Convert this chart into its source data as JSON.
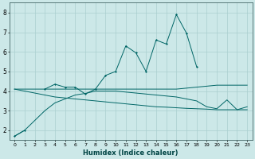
{
  "xlabel": "Humidex (Indice chaleur)",
  "background_color": "#cce8e8",
  "grid_color": "#aacfcf",
  "line_color": "#006666",
  "x_humidex": [
    0,
    1,
    2,
    3,
    4,
    5,
    6,
    7,
    8,
    9,
    10,
    11,
    12,
    13,
    14,
    15,
    16,
    17,
    18,
    19,
    20,
    21,
    22,
    23
  ],
  "y_curve": [
    1.7,
    2.0,
    null,
    4.1,
    4.35,
    4.2,
    4.2,
    3.85,
    4.1,
    4.8,
    5.0,
    6.3,
    5.95,
    5.0,
    6.6,
    6.4,
    7.9,
    6.95,
    5.25,
    null,
    null,
    null,
    null,
    null
  ],
  "y_line1": [
    4.1,
    4.1,
    4.1,
    4.1,
    4.1,
    4.1,
    4.1,
    4.1,
    4.1,
    4.1,
    4.1,
    4.1,
    4.1,
    4.1,
    4.1,
    4.1,
    4.1,
    4.15,
    4.2,
    4.25,
    4.3,
    4.3,
    4.3,
    4.3
  ],
  "y_line2": [
    4.1,
    4.0,
    3.9,
    3.8,
    3.7,
    3.65,
    3.6,
    3.55,
    3.5,
    3.45,
    3.4,
    3.35,
    3.3,
    3.25,
    3.2,
    3.18,
    3.15,
    3.12,
    3.1,
    3.08,
    3.05,
    3.05,
    3.05,
    3.05
  ],
  "y_line3": [
    1.7,
    2.0,
    2.5,
    3.0,
    3.4,
    3.6,
    3.8,
    3.88,
    4.0,
    4.0,
    4.0,
    3.95,
    3.9,
    3.85,
    3.8,
    3.75,
    3.7,
    3.6,
    3.5,
    3.2,
    3.1,
    3.55,
    3.05,
    3.2
  ],
  "ylim": [
    1.5,
    8.5
  ],
  "xlim": [
    -0.5,
    23.5
  ],
  "yticks": [
    2,
    3,
    4,
    5,
    6,
    7,
    8
  ],
  "xticks": [
    0,
    1,
    2,
    3,
    4,
    5,
    6,
    7,
    8,
    9,
    10,
    11,
    12,
    13,
    14,
    15,
    16,
    17,
    18,
    19,
    20,
    21,
    22,
    23
  ]
}
